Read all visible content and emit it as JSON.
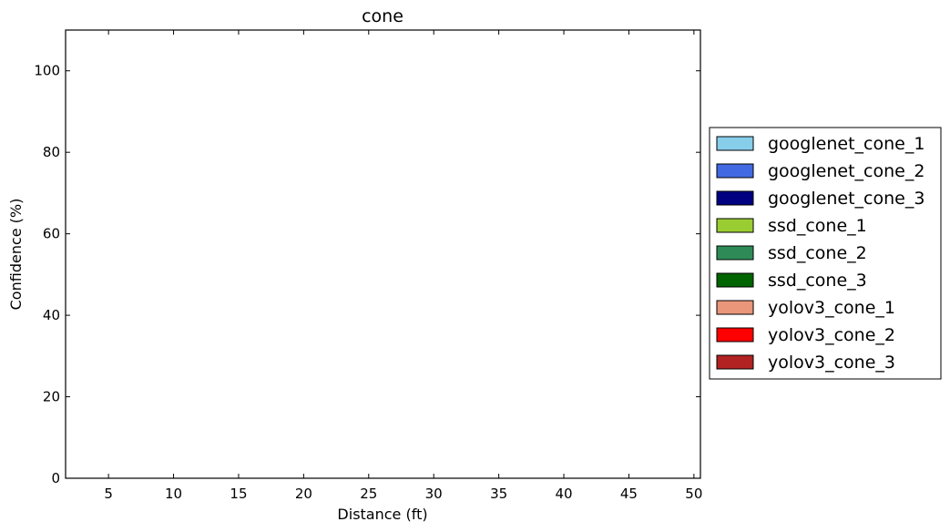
{
  "chart_data": {
    "type": "bar",
    "title": "cone",
    "xlabel": "Distance (ft)",
    "ylabel": "Confidence (%)",
    "xlim": [
      1.7,
      50.5
    ],
    "ylim": [
      0,
      110
    ],
    "xticks": [
      5,
      10,
      15,
      20,
      25,
      30,
      35,
      40,
      45,
      50
    ],
    "yticks": [
      0,
      20,
      40,
      60,
      80,
      100
    ],
    "categories": [
      5,
      10,
      15,
      20,
      25,
      30,
      35,
      40,
      45,
      50
    ],
    "legend_position": "right",
    "series": [
      {
        "name": "googlenet_cone_1",
        "color": "#87ceeb",
        "values": [
          0,
          0,
          0,
          0,
          0,
          0,
          0,
          0,
          0,
          0
        ]
      },
      {
        "name": "googlenet_cone_2",
        "color": "#4169e1",
        "values": [
          0,
          0,
          0,
          0,
          0,
          0,
          0,
          0,
          0,
          0
        ]
      },
      {
        "name": "googlenet_cone_3",
        "color": "#000080",
        "values": [
          0,
          0,
          0,
          0,
          0,
          0,
          0,
          0,
          0,
          0
        ]
      },
      {
        "name": "ssd_cone_1",
        "color": "#9acd32",
        "values": [
          0,
          0,
          0,
          0,
          0,
          0,
          0,
          0,
          0,
          0
        ]
      },
      {
        "name": "ssd_cone_2",
        "color": "#2e8b57",
        "values": [
          0,
          0,
          0,
          0,
          0,
          0,
          0,
          0,
          0,
          0
        ]
      },
      {
        "name": "ssd_cone_3",
        "color": "#006400",
        "values": [
          0,
          0,
          0,
          0,
          0,
          0,
          0,
          0,
          0,
          0
        ]
      },
      {
        "name": "yolov3_cone_1",
        "color": "#e9967a",
        "values": [
          0,
          0,
          0,
          0,
          0,
          0,
          0,
          0,
          0,
          0
        ]
      },
      {
        "name": "yolov3_cone_2",
        "color": "#ff0000",
        "values": [
          0,
          0,
          0,
          0,
          0,
          0,
          0,
          0,
          0,
          0
        ]
      },
      {
        "name": "yolov3_cone_3",
        "color": "#b22222",
        "values": [
          0,
          0,
          0,
          0,
          0,
          0,
          0,
          0,
          0,
          0
        ]
      }
    ]
  }
}
